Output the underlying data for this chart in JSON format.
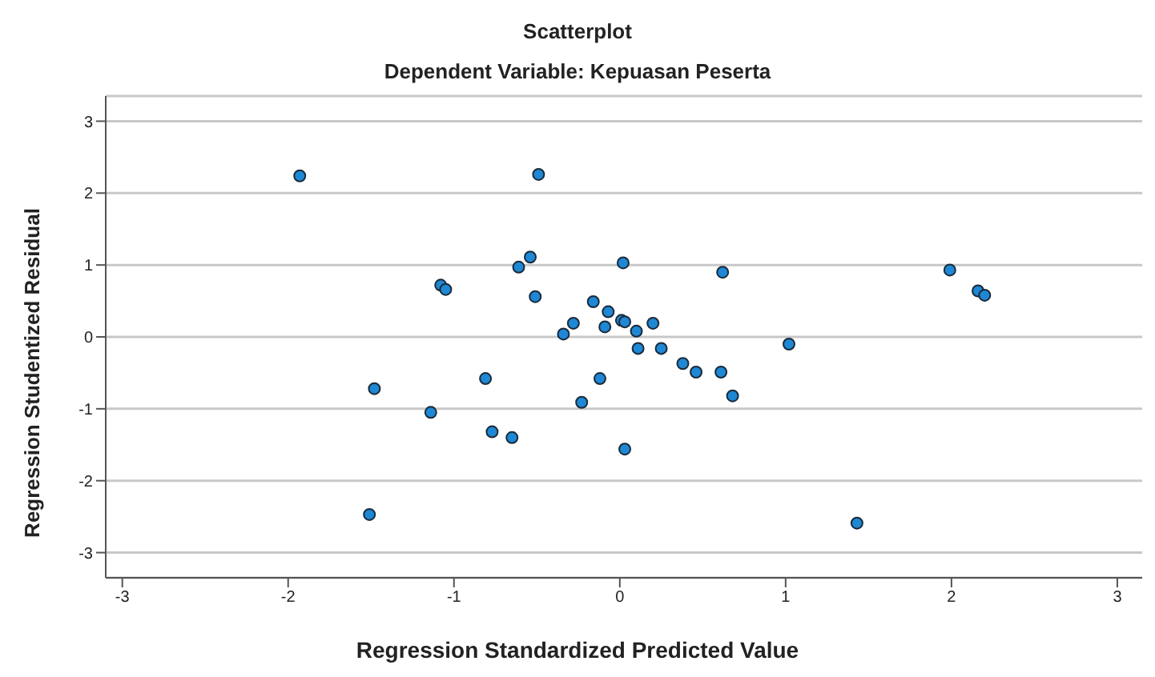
{
  "chart_data": {
    "type": "scatter",
    "title": "Scatterplot",
    "subtitle": "Dependent Variable: Kepuasan Peserta",
    "xlabel": "Regression Standardized Predicted Value",
    "ylabel": "Regression Studentized Residual",
    "x": [
      -1.93,
      -0.49,
      -0.54,
      -0.61,
      0.02,
      -1.08,
      -1.05,
      -0.51,
      -0.16,
      -0.07,
      -0.28,
      -0.09,
      0.01,
      0.03,
      0.2,
      0.1,
      -0.34,
      0.11,
      0.25,
      0.38,
      0.46,
      0.61,
      -1.48,
      -0.81,
      -0.12,
      -0.23,
      -1.14,
      -0.77,
      -0.65,
      0.03,
      -1.51,
      0.62,
      1.99,
      2.16,
      2.2,
      1.02,
      0.68,
      1.43
    ],
    "values": [
      2.24,
      2.26,
      1.11,
      0.97,
      1.03,
      0.72,
      0.66,
      0.56,
      0.49,
      0.35,
      0.19,
      0.14,
      0.23,
      0.21,
      0.19,
      0.08,
      0.04,
      -0.16,
      -0.16,
      -0.37,
      -0.49,
      -0.49,
      -0.72,
      -0.58,
      -0.58,
      -0.91,
      -1.05,
      -1.32,
      -1.4,
      -1.56,
      -2.47,
      0.9,
      0.93,
      0.64,
      0.58,
      -0.1,
      -0.82,
      -2.59
    ],
    "color": "#1e88d4",
    "marker": "circle",
    "grid": "y",
    "xlim": [
      -3.1,
      3.15
    ],
    "xticks": [
      -3,
      -2,
      -1,
      0,
      1,
      2,
      3
    ],
    "ylim": [
      -3.35,
      3.35
    ],
    "yticks": [
      -3,
      -2,
      -1,
      0,
      1,
      2,
      3
    ]
  }
}
